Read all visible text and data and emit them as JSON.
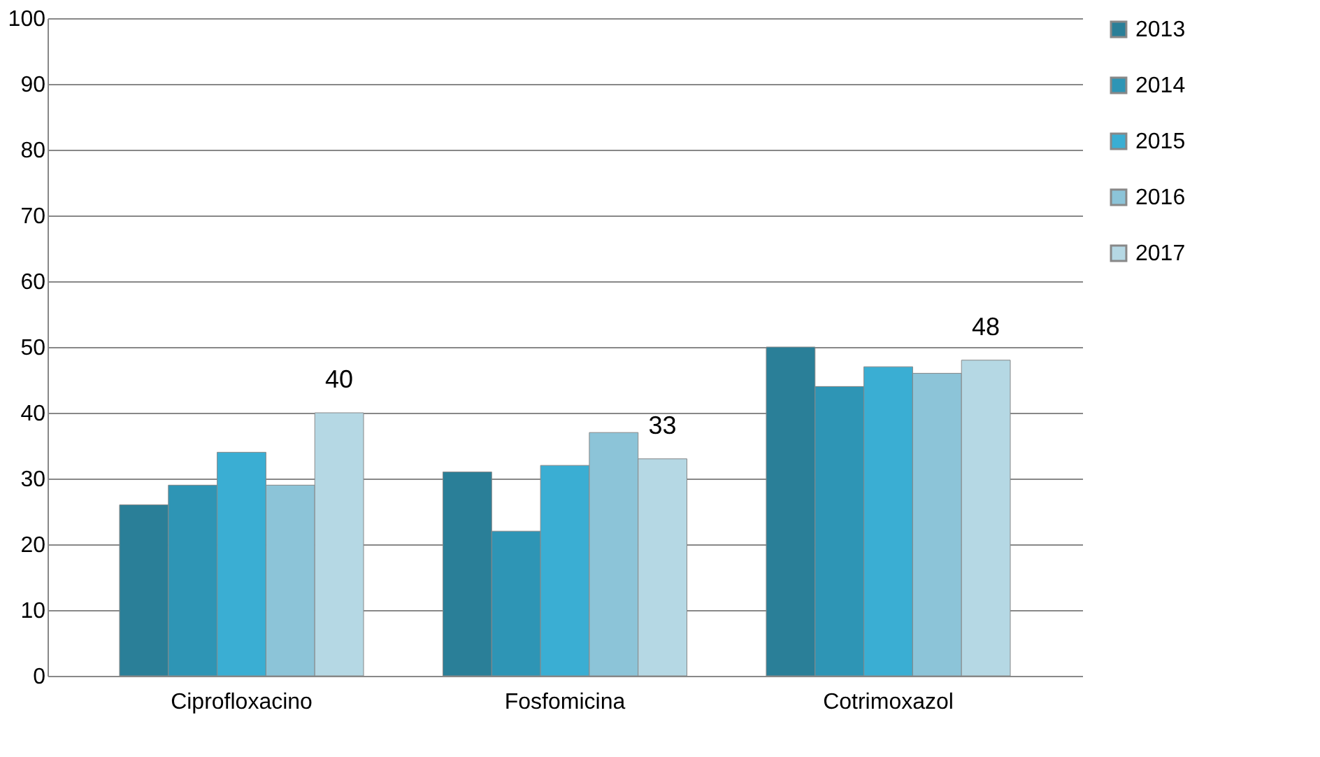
{
  "chart_data": {
    "type": "bar",
    "categories": [
      "Ciprofloxacino",
      "Fosfomicina",
      "Cotrimoxazol"
    ],
    "series": [
      {
        "name": "2013",
        "color": "#2a7f98",
        "values": [
          26,
          31,
          50
        ]
      },
      {
        "name": "2014",
        "color": "#2e95b5",
        "values": [
          29,
          22,
          44
        ]
      },
      {
        "name": "2015",
        "color": "#3aaed3",
        "values": [
          34,
          32,
          47
        ]
      },
      {
        "name": "2016",
        "color": "#8cc4d8",
        "values": [
          29,
          37,
          46
        ]
      },
      {
        "name": "2017",
        "color": "#b5d8e4",
        "values": [
          40,
          33,
          48
        ],
        "value_labels": [
          "40",
          "33",
          "48"
        ]
      }
    ],
    "ylim": [
      0,
      100
    ],
    "yticks": [
      0,
      10,
      20,
      30,
      40,
      50,
      60,
      70,
      80,
      90,
      100
    ],
    "grid": "y",
    "legend": "right"
  }
}
